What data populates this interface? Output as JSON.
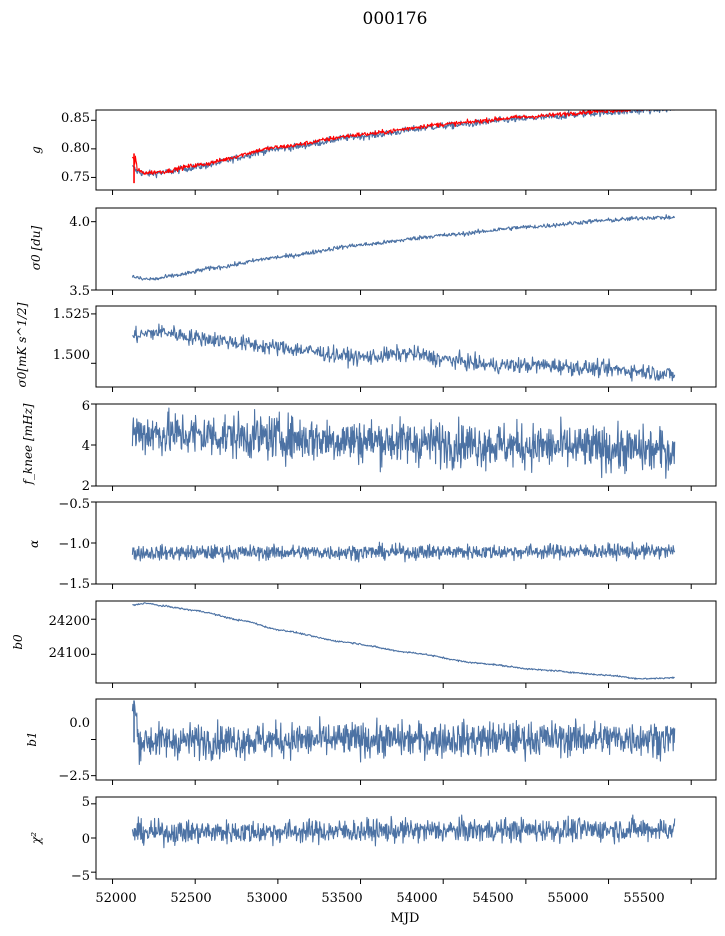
{
  "figure": {
    "title": "000176",
    "xlabel": "MJD",
    "xlim": [
      51900,
      55650
    ],
    "xticks": [
      52000,
      52500,
      53000,
      53500,
      54000,
      54500,
      55000,
      55500
    ],
    "data_range": [
      52120,
      55400
    ],
    "colors": {
      "series": "#4c72a4",
      "fit": "#ff0000",
      "axis": "#000000"
    }
  },
  "chart_data": [
    {
      "type": "line",
      "panel": "g",
      "ylabel": "g",
      "ylim": [
        0.728,
        0.868
      ],
      "yticks": [
        0.75,
        0.8,
        0.85
      ],
      "ytick_labels": [
        "0.75",
        "0.80",
        "0.85"
      ],
      "series": [
        {
          "shape": "curve",
          "x": [
            52120,
            52150,
            52200,
            52300,
            52500,
            53000,
            53500,
            54000,
            54500,
            55000,
            55400
          ],
          "y": [
            0.768,
            0.76,
            0.756,
            0.758,
            0.768,
            0.8,
            0.822,
            0.84,
            0.853,
            0.864,
            0.87
          ],
          "noise": 0.003,
          "color": "#4c72a4"
        },
        {
          "shape": "curve",
          "x": [
            52120,
            52150,
            52200,
            52300,
            52500,
            53000,
            53500,
            54000,
            54500,
            55000,
            55400
          ],
          "y": [
            0.77,
            0.762,
            0.758,
            0.76,
            0.771,
            0.803,
            0.825,
            0.843,
            0.856,
            0.867,
            0.873
          ],
          "noise": 0.002,
          "color": "#ff0000",
          "spike": {
            "x": 52130,
            "ymin": 0.74,
            "ymax": 0.792
          }
        }
      ]
    },
    {
      "type": "line",
      "panel": "sigma0",
      "ylabel": "σ0 [du]",
      "ylim": [
        3.5,
        4.1
      ],
      "yticks": [
        3.5,
        4.0
      ],
      "ytick_labels": [
        "3.5",
        "4.0"
      ],
      "series": [
        {
          "shape": "curve",
          "x": [
            52120,
            52180,
            52250,
            52400,
            52600,
            53000,
            53500,
            54000,
            54500,
            55000,
            55250,
            55400
          ],
          "y": [
            3.6,
            3.58,
            3.58,
            3.61,
            3.66,
            3.74,
            3.83,
            3.9,
            3.96,
            4.01,
            4.03,
            4.03
          ],
          "noise": 0.008,
          "color": "#4c72a4"
        }
      ]
    },
    {
      "type": "line",
      "panel": "sigma0_mK",
      "ylabel": "σ0[mK s^1/2]",
      "ylim": [
        1.488,
        1.529
      ],
      "yticks": [
        1.5,
        1.525
      ],
      "ytick_labels": [
        "1.500",
        "1.525"
      ],
      "series": [
        {
          "shape": "curve",
          "x": [
            52120,
            52300,
            52500,
            53000,
            53500,
            53800,
            54000,
            54300,
            54600,
            55000,
            55200,
            55400
          ],
          "y": [
            1.514,
            1.516,
            1.513,
            1.508,
            1.503,
            1.505,
            1.502,
            1.499,
            1.499,
            1.497,
            1.496,
            1.494
          ],
          "noise": 0.002,
          "color": "#4c72a4"
        }
      ]
    },
    {
      "type": "line",
      "panel": "fknee",
      "ylabel": "f_knee [mHz]",
      "ylim": [
        2,
        6
      ],
      "yticks": [
        2,
        4,
        6
      ],
      "ytick_labels": [
        "2",
        "4",
        "6"
      ],
      "series": [
        {
          "shape": "noise",
          "x": [
            52120,
            55400
          ],
          "y": [
            4.6,
            3.7
          ],
          "noise": 0.55,
          "color": "#4c72a4"
        }
      ]
    },
    {
      "type": "line",
      "panel": "alpha",
      "ylabel": "α",
      "ylim": [
        -1.5,
        -0.5
      ],
      "yticks": [
        -1.5,
        -1.0,
        -0.5
      ],
      "ytick_labels": [
        "−1.5",
        "−1.0",
        "−0.5"
      ],
      "series": [
        {
          "shape": "noise",
          "x": [
            52120,
            55400
          ],
          "y": [
            -1.12,
            -1.1
          ],
          "noise": 0.045,
          "color": "#4c72a4"
        }
      ]
    },
    {
      "type": "line",
      "panel": "b0",
      "ylabel": "b0",
      "ylim": [
        24018,
        24252
      ],
      "yticks": [
        24100,
        24200
      ],
      "ytick_labels": [
        "24100",
        "24200"
      ],
      "series": [
        {
          "shape": "curve",
          "x": [
            52120,
            52200,
            52300,
            52500,
            52800,
            53000,
            53400,
            53800,
            54200,
            54600,
            55000,
            55200,
            55400
          ],
          "y": [
            24240,
            24246,
            24238,
            24225,
            24195,
            24170,
            24135,
            24105,
            24075,
            24055,
            24040,
            24030,
            24033
          ],
          "noise": 1.2,
          "color": "#4c72a4"
        }
      ]
    },
    {
      "type": "line",
      "panel": "b1",
      "ylabel": "b1",
      "ylim": [
        -2.8,
        2.8
      ],
      "yticks": [
        -2.5,
        0.0
      ],
      "ytick_labels": [
        "−2.5",
        "0.0"
      ],
      "series": [
        {
          "shape": "noise",
          "x": [
            52120,
            55400
          ],
          "y": [
            -0.1,
            0.1
          ],
          "noise": 0.6,
          "color": "#4c72a4",
          "spike": {
            "x": 52130,
            "ymin": -0.2,
            "ymax": 2.7
          }
        }
      ]
    },
    {
      "type": "line",
      "panel": "chi2",
      "ylabel": "χ²",
      "ylim": [
        -6,
        6
      ],
      "yticks": [
        -5,
        0,
        5
      ],
      "ytick_labels": [
        "−5",
        "0",
        "5"
      ],
      "series": [
        {
          "shape": "noise",
          "x": [
            52120,
            55400
          ],
          "y": [
            0.8,
            1.3
          ],
          "noise": 0.85,
          "color": "#4c72a4"
        }
      ]
    }
  ]
}
